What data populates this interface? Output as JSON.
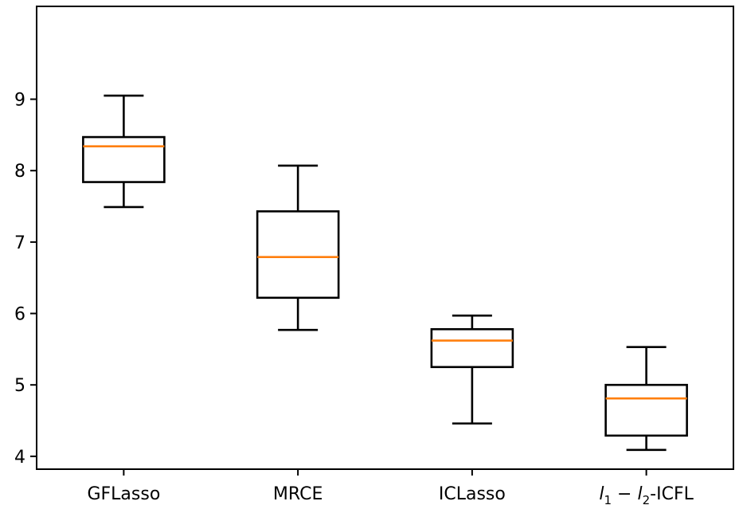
{
  "chart_data": {
    "type": "boxplot",
    "title": "",
    "xlabel": "",
    "ylabel": "",
    "ylim": [
      3.82,
      10.3
    ],
    "yticks": [
      4,
      5,
      6,
      7,
      8,
      9
    ],
    "grid": false,
    "categories": [
      {
        "label": "GFLasso"
      },
      {
        "label": "MRCE"
      },
      {
        "label": "ICLasso"
      },
      {
        "label_parts": [
          "l",
          "1",
          " − ",
          "l",
          "2",
          "-ICFL"
        ]
      }
    ],
    "boxes": [
      {
        "whisker_low": 7.49,
        "q1": 7.84,
        "median": 8.34,
        "q3": 8.47,
        "whisker_high": 9.05
      },
      {
        "whisker_low": 5.77,
        "q1": 6.22,
        "median": 6.79,
        "q3": 7.43,
        "whisker_high": 8.07
      },
      {
        "whisker_low": 4.46,
        "q1": 5.25,
        "median": 5.62,
        "q3": 5.78,
        "whisker_high": 5.97
      },
      {
        "whisker_low": 4.09,
        "q1": 4.29,
        "median": 4.81,
        "q3": 5.0,
        "whisker_high": 5.53
      }
    ],
    "colors": {
      "box": "#000000",
      "median": "#ff7f0e",
      "axes": "#000000"
    }
  }
}
